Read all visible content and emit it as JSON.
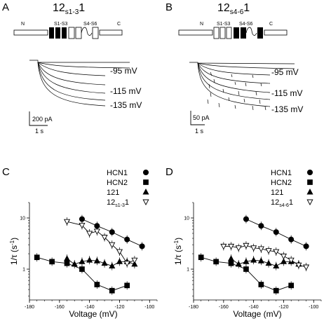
{
  "figure": {
    "panel_A": {
      "letter": "A",
      "construct": "12",
      "construct_sub": "s1-3",
      "construct_suffix": "1",
      "domains": {
        "n": "N",
        "s1s3": "S1-S3",
        "s4s6": "S4-S6",
        "c": "C"
      },
      "trace_labels": [
        "-95 mV",
        "-115 mV",
        "-135 mV"
      ],
      "scale_current": "200 pA",
      "scale_time": "1 s"
    },
    "panel_B": {
      "letter": "B",
      "construct": "12",
      "construct_sub": "s4-6",
      "construct_suffix": "1",
      "domains": {
        "n": "N",
        "s1s3": "S1-S3",
        "s4s6": "S4-S6",
        "c": "C"
      },
      "trace_labels": [
        "-95 mV",
        "-115 mV",
        "-135 mV"
      ],
      "scale_current": "50 pA",
      "scale_time": "1 s"
    },
    "panel_C": {
      "letter": "C"
    },
    "panel_D": {
      "letter": "D"
    }
  },
  "chart_data": [
    {
      "type": "scatter",
      "panel": "C",
      "xlabel": "Voltage (mV)",
      "ylabel": "1/τ (s",
      "ylabel_sup": "-1",
      "ylabel_close": ")",
      "xlim": [
        -180,
        -95
      ],
      "ylim": [
        0.25,
        20
      ],
      "yscale": "log",
      "xticks": [
        -180,
        -160,
        -140,
        -120,
        -100
      ],
      "yticks": [
        1,
        10
      ],
      "legend_position": "top-right",
      "series": [
        {
          "name": "HCN1",
          "marker": "circle",
          "filled": true,
          "connected": true,
          "x": [
            -145,
            -135,
            -125,
            -115,
            -105
          ],
          "y": [
            9.5,
            7.0,
            5.3,
            3.8,
            2.8
          ]
        },
        {
          "name": "HCN2",
          "marker": "square",
          "filled": true,
          "connected": true,
          "x": [
            -175,
            -165,
            -155,
            -145,
            -135,
            -125,
            -115
          ],
          "y": [
            1.7,
            1.4,
            1.3,
            1.0,
            0.5,
            0.38,
            0.48
          ]
        },
        {
          "name": "121",
          "marker": "triangle-up",
          "filled": true,
          "connected": true,
          "x": [
            -155,
            -150,
            -145,
            -140,
            -135,
            -130,
            -125,
            -120,
            -115,
            -110
          ],
          "y": [
            1.6,
            1.25,
            1.4,
            1.5,
            1.45,
            1.3,
            1.15,
            1.4,
            1.4,
            1.25
          ]
        },
        {
          "name": "12",
          "name_sub": "s1-3",
          "name_suffix": "1",
          "marker": "triangle-down",
          "filled": false,
          "connected": true,
          "x": [
            -155,
            -145,
            -140,
            -135,
            -130,
            -125,
            -120,
            -115,
            -110
          ],
          "y": [
            8.5,
            7.2,
            5.0,
            5.5,
            4.2,
            3.0,
            2.2,
            1.3,
            1.5
          ]
        }
      ]
    },
    {
      "type": "scatter",
      "panel": "D",
      "xlabel": "Voltage (mV)",
      "ylabel": "1/τ (s",
      "ylabel_sup": "-1",
      "ylabel_close": ")",
      "xlim": [
        -180,
        -95
      ],
      "ylim": [
        0.25,
        20
      ],
      "yscale": "log",
      "xticks": [
        -180,
        -160,
        -140,
        -120,
        -100
      ],
      "yticks": [
        1,
        10
      ],
      "legend_position": "top-right",
      "series": [
        {
          "name": "HCN1",
          "marker": "circle",
          "filled": true,
          "connected": true,
          "x": [
            -145,
            -135,
            -125,
            -115,
            -105
          ],
          "y": [
            9.5,
            7.0,
            5.3,
            3.8,
            2.8
          ]
        },
        {
          "name": "HCN2",
          "marker": "square",
          "filled": true,
          "connected": true,
          "x": [
            -175,
            -165,
            -155,
            -145,
            -135,
            -125,
            -115
          ],
          "y": [
            1.7,
            1.4,
            1.3,
            1.0,
            0.5,
            0.38,
            0.48
          ]
        },
        {
          "name": "121",
          "marker": "triangle-up",
          "filled": true,
          "connected": true,
          "x": [
            -155,
            -150,
            -145,
            -140,
            -135,
            -130,
            -125,
            -120,
            -115,
            -110
          ],
          "y": [
            1.6,
            1.25,
            1.4,
            1.5,
            1.45,
            1.3,
            1.15,
            1.4,
            1.4,
            1.25
          ]
        },
        {
          "name": "12",
          "name_sub": "s4-6",
          "name_suffix": "1",
          "marker": "triangle-down",
          "filled": false,
          "connected": true,
          "x": [
            -160,
            -155,
            -150,
            -145,
            -140,
            -135,
            -130,
            -125,
            -120,
            -115,
            -110,
            -105
          ],
          "y": [
            2.8,
            2.8,
            2.6,
            2.9,
            2.6,
            2.5,
            2.3,
            2.2,
            1.8,
            1.5,
            1.2,
            1.1
          ]
        }
      ]
    }
  ]
}
